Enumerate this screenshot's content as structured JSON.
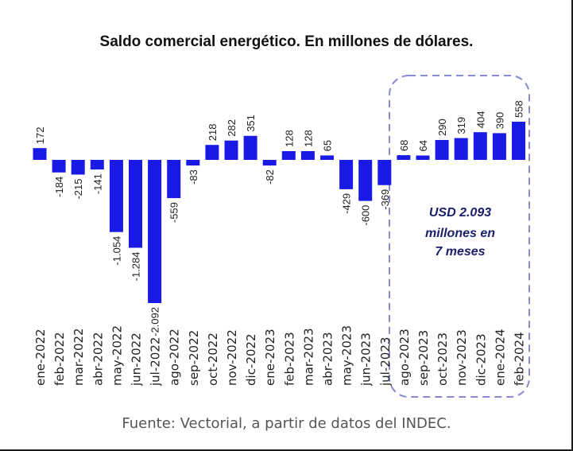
{
  "title": "Saldo comercial energético. En millones de dólares.",
  "source": "Fuente: Vectorial, a partir de datos del INDEC.",
  "callout": {
    "lines": [
      "USD 2.093",
      "millones en",
      "7 meses"
    ]
  },
  "colors": {
    "bar": "#1a1ae6",
    "callout_border": "#8a8ad0",
    "text": "#222222"
  },
  "chart_data": {
    "type": "bar",
    "title": "Saldo comercial energético. En millones de dólares.",
    "categories": [
      "ene-2022",
      "feb-2022",
      "mar-2022",
      "abr-2022",
      "may-2022",
      "jun-2022",
      "jul-2022",
      "ago-2022",
      "sep-2022",
      "oct-2022",
      "nov-2022",
      "dic-2022",
      "ene-2023",
      "feb-2023",
      "mar-2023",
      "abr-2023",
      "may-2023",
      "jun-2023",
      "jul-2023",
      "ago-2023",
      "sep-2023",
      "oct-2023",
      "nov-2023",
      "dic-2023",
      "ene-2024",
      "feb-2024"
    ],
    "values": [
      172,
      -184,
      -215,
      -141,
      -1054,
      -1284,
      -2092,
      -559,
      -83,
      218,
      282,
      351,
      -82,
      128,
      128,
      65,
      -429,
      -600,
      -369,
      68,
      64,
      290,
      319,
      404,
      390,
      558
    ],
    "value_labels": [
      "172",
      "-184",
      "-215",
      "-141",
      "-1.054",
      "-1.284",
      "-2.092",
      "-559",
      "-83",
      "218",
      "282",
      "351",
      "-82",
      "128",
      "128",
      "65",
      "-429",
      "-600",
      "-369",
      "68",
      "64",
      "290",
      "319",
      "404",
      "390",
      "558"
    ],
    "xlabel": "",
    "ylabel": "",
    "grid": false,
    "highlight_range": [
      "ago-2023",
      "feb-2024"
    ]
  }
}
